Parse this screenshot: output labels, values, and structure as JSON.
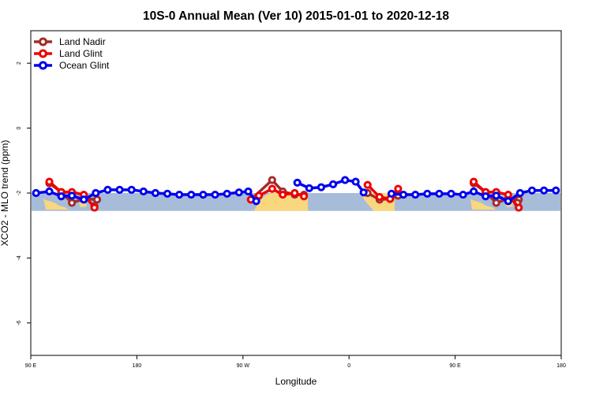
{
  "chart_data": {
    "type": "line",
    "title": "10S-0 Annual Mean (Ver 10)   2015-01-01 to 2020-12-18",
    "xlabel": "Longitude",
    "ylabel": "XCO2 - MLO trend (ppm)",
    "xlim": [
      0,
      400
    ],
    "ylim": [
      -7,
      3
    ],
    "x_ticks": [
      {
        "value": 0,
        "label": "90 E"
      },
      {
        "value": 80,
        "label": "180"
      },
      {
        "value": 160,
        "label": "90 W"
      },
      {
        "value": 240,
        "label": "0"
      },
      {
        "value": 320,
        "label": "90 E"
      },
      {
        "value": 400,
        "label": "180"
      }
    ],
    "y_ticks": [
      {
        "value": 2,
        "label": "2"
      },
      {
        "value": 0,
        "label": "0"
      },
      {
        "value": -2,
        "label": "-2"
      },
      {
        "value": -4,
        "label": "-4"
      },
      {
        "value": -6,
        "label": "-6"
      }
    ],
    "grid": false,
    "legend_position": "top-left",
    "map_band": {
      "y_top": -2.0,
      "y_bottom": -2.55,
      "ocean_color": "#a7bcd9",
      "land_color": "#f8d77f"
    },
    "series": [
      {
        "name": "Land Nadir",
        "color": "#a52a2a",
        "segments": [
          [
            [
              14,
              -1.7
            ],
            [
              23,
              -1.97
            ],
            [
              31,
              -2.3
            ],
            [
              40,
              -2.18
            ],
            [
              50,
              -2.2
            ],
            [
              48,
              -2.4
            ]
          ],
          [
            [
              166,
              -2.2
            ],
            [
              182,
              -1.6
            ],
            [
              190,
              -1.95
            ],
            [
              199,
              -2.05
            ],
            [
              206,
              -2.05
            ]
          ],
          [
            [
              254,
              -2.0
            ],
            [
              263,
              -2.2
            ],
            [
              271,
              -2.18
            ],
            [
              277,
              -2.08
            ]
          ],
          [
            [
              334,
              -1.7
            ],
            [
              343,
              -1.97
            ],
            [
              351,
              -2.3
            ],
            [
              360,
              -2.18
            ],
            [
              368,
              -2.2
            ],
            [
              367,
              -2.3
            ]
          ]
        ]
      },
      {
        "name": "Land Glint",
        "color": "#ee0000",
        "segments": [
          [
            [
              14,
              -1.65
            ],
            [
              23,
              -1.97
            ],
            [
              31,
              -1.97
            ],
            [
              40,
              -2.05
            ],
            [
              48,
              -2.45
            ]
          ],
          [
            [
              166,
              -2.2
            ],
            [
              172,
              -2.08
            ],
            [
              182,
              -1.87
            ],
            [
              190,
              -2.05
            ],
            [
              199,
              -2.0
            ],
            [
              206,
              -2.1
            ]
          ],
          [
            [
              254,
              -1.75
            ],
            [
              263,
              -2.12
            ],
            [
              271,
              -2.18
            ],
            [
              277,
              -1.87
            ]
          ],
          [
            [
              334,
              -1.65
            ],
            [
              343,
              -1.97
            ],
            [
              351,
              -1.97
            ],
            [
              360,
              -2.05
            ],
            [
              368,
              -2.45
            ]
          ]
        ]
      },
      {
        "name": "Ocean Glint",
        "color": "#0000ee",
        "segments": [
          [
            [
              4,
              -2.0
            ],
            [
              14,
              -1.95
            ],
            [
              23,
              -2.1
            ],
            [
              31,
              -2.08
            ],
            [
              40,
              -2.2
            ],
            [
              49,
              -2.0
            ],
            [
              58,
              -1.9
            ],
            [
              67,
              -1.9
            ],
            [
              76,
              -1.9
            ],
            [
              85,
              -1.95
            ],
            [
              94,
              -2.0
            ],
            [
              103,
              -2.02
            ],
            [
              112,
              -2.05
            ],
            [
              121,
              -2.05
            ],
            [
              130,
              -2.05
            ],
            [
              139,
              -2.05
            ],
            [
              148,
              -2.02
            ],
            [
              157,
              -1.98
            ],
            [
              164,
              -1.95
            ],
            [
              170,
              -2.25
            ]
          ],
          [
            [
              201,
              -1.68
            ],
            [
              210,
              -1.85
            ],
            [
              219,
              -1.82
            ],
            [
              228,
              -1.73
            ],
            [
              237,
              -1.6
            ],
            [
              245,
              -1.65
            ],
            [
              251,
              -1.98
            ]
          ],
          [
            [
              272,
              -2.02
            ],
            [
              281,
              -2.05
            ],
            [
              290,
              -2.05
            ],
            [
              299,
              -2.02
            ],
            [
              308,
              -2.02
            ],
            [
              317,
              -2.02
            ],
            [
              326,
              -2.05
            ],
            [
              334,
              -1.95
            ],
            [
              343,
              -2.1
            ],
            [
              351,
              -2.08
            ],
            [
              360,
              -2.25
            ],
            [
              369,
              -2.0
            ],
            [
              378,
              -1.92
            ],
            [
              387,
              -1.92
            ],
            [
              396,
              -1.92
            ]
          ]
        ]
      }
    ]
  }
}
